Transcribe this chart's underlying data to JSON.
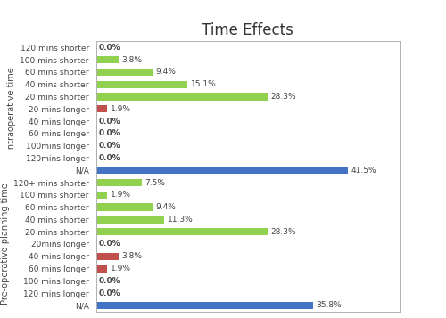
{
  "title": "Time Effects",
  "intraoperative": {
    "ylabel": "Intraoperative time",
    "categories": [
      "120 mins shorter",
      "100 mins shorter",
      "60 mins shorter",
      "40 mins shorter",
      "20 mins shorter",
      "20 mins longer",
      "40 mins longer",
      "60 mins longer",
      "100mins longer",
      "120mins longer",
      "N/A"
    ],
    "values": [
      0.0,
      3.8,
      9.4,
      15.1,
      28.3,
      1.9,
      0.0,
      0.0,
      0.0,
      0.0,
      41.5
    ],
    "colors": [
      "#92d050",
      "#92d050",
      "#92d050",
      "#92d050",
      "#92d050",
      "#c0504d",
      "#c0504d",
      "#c0504d",
      "#c0504d",
      "#c0504d",
      "#4472c4"
    ],
    "labels": [
      "0.0%",
      "3.8%",
      "9.4%",
      "15.1%",
      "28.3%",
      "1.9%",
      "0.0%",
      "0.0%",
      "0.0%",
      "0.0%",
      "41.5%"
    ]
  },
  "postoperative": {
    "ylabel": "Pre-operative planning time",
    "categories": [
      "120+ mins shorter",
      "100 mins shorter",
      "60 mins shorter",
      "40 mins shorter",
      "20 mins shorter",
      "20mins longer",
      "40 mins longer",
      "60 mins longer",
      "100 mins longer",
      "120 mins longer",
      "N/A"
    ],
    "values": [
      7.5,
      1.9,
      9.4,
      11.3,
      28.3,
      0.0,
      3.8,
      1.9,
      0.0,
      0.0,
      35.8
    ],
    "colors": [
      "#92d050",
      "#92d050",
      "#92d050",
      "#92d050",
      "#92d050",
      "#c0504d",
      "#c0504d",
      "#c0504d",
      "#c0504d",
      "#c0504d",
      "#4472c4"
    ],
    "labels": [
      "7.5%",
      "1.9%",
      "9.4%",
      "11.3%",
      "28.3%",
      "0.0%",
      "3.8%",
      "1.9%",
      "0.0%",
      "0.0%",
      "35.8%"
    ]
  },
  "xlim": [
    0,
    50
  ],
  "bar_height": 0.6,
  "label_fontsize": 6.5,
  "tick_fontsize": 6.5,
  "title_fontsize": 12,
  "ylabel_fontsize": 7,
  "bg_color": "#ffffff",
  "border_color": "#b0b0b0",
  "zero_label_fontweight": "bold"
}
